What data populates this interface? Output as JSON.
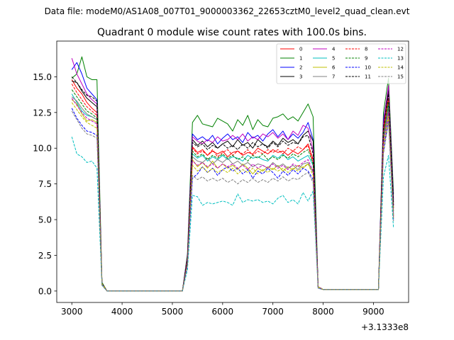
{
  "chart_data": {
    "type": "line",
    "suptitle": "Data file: modeM0/AS1A08_007T01_9000003362_22653cztM0_level2_quad_clean.evt",
    "title": "Quadrant 0 module wise count rates with 100.0s bins.",
    "xlabel": "",
    "ylabel": "",
    "x_offset_label": "+3.1333e8",
    "xlim": [
      2700,
      9700
    ],
    "ylim": [
      -0.8,
      17.5
    ],
    "xticks": [
      3000,
      4000,
      5000,
      6000,
      7000,
      8000,
      9000
    ],
    "xtick_labels": [
      "3000",
      "4000",
      "5000",
      "6000",
      "7000",
      "8000",
      "9000"
    ],
    "yticks": [
      0,
      2.5,
      5,
      7.5,
      10,
      12.5,
      15
    ],
    "ytick_labels": [
      "0.0",
      "2.5",
      "5.0",
      "7.5",
      "10.0",
      "12.5",
      "15.0"
    ],
    "grid": false,
    "legend_position": "top-right",
    "legend_columns": 4,
    "x": [
      3000,
      3100,
      3200,
      3300,
      3400,
      3500,
      3600,
      3700,
      3800,
      3900,
      4000,
      4100,
      4200,
      4300,
      4400,
      4500,
      4600,
      4700,
      4800,
      4900,
      5000,
      5100,
      5200,
      5300,
      5400,
      5500,
      5600,
      5700,
      5800,
      5900,
      6000,
      6100,
      6200,
      6300,
      6400,
      6500,
      6600,
      6700,
      6800,
      6900,
      7000,
      7100,
      7200,
      7300,
      7400,
      7500,
      7600,
      7700,
      7800,
      7900,
      8000,
      8100,
      8200,
      8300,
      8400,
      8500,
      8600,
      8700,
      8800,
      8900,
      9000,
      9100,
      9200,
      9300,
      9400
    ],
    "series": [
      {
        "name": "0",
        "color": "#ff0000",
        "dash": "solid",
        "values": [
          14.8,
          14.2,
          13.8,
          13.2,
          12.8,
          12.5,
          0.6,
          0,
          0,
          0,
          0,
          0,
          0,
          0,
          0,
          0,
          0,
          0,
          0,
          0,
          0,
          0,
          0,
          2.2,
          10.1,
          9.7,
          9.9,
          9.5,
          9.8,
          9.6,
          9.8,
          9.4,
          9.7,
          9.8,
          9.5,
          9.7,
          9.6,
          10.0,
          9.8,
          9.6,
          9.9,
          9.7,
          9.8,
          9.5,
          9.8,
          9.6,
          9.9,
          10.3,
          9.2,
          0.3,
          0.1,
          0.1,
          0.1,
          0.1,
          0.1,
          0.1,
          0.1,
          0.1,
          0.1,
          0.1,
          0.1,
          0.1,
          11.2,
          13.5,
          5.8
        ]
      },
      {
        "name": "1",
        "color": "#008000",
        "dash": "solid",
        "values": [
          14.9,
          15.2,
          16.4,
          15.0,
          14.8,
          14.8,
          0.6,
          0,
          0,
          0,
          0,
          0,
          0,
          0,
          0,
          0,
          0,
          0,
          0,
          0,
          0,
          0,
          0,
          2.6,
          11.8,
          12.3,
          11.7,
          11.6,
          11.5,
          12.1,
          11.9,
          11.7,
          11.2,
          12.0,
          11.6,
          12.3,
          11.3,
          12.0,
          11.6,
          11.5,
          12.1,
          12.2,
          12.4,
          12.0,
          12.2,
          11.9,
          12.5,
          13.1,
          12.2,
          0.3,
          0.1,
          0.1,
          0.1,
          0.1,
          0.1,
          0.1,
          0.1,
          0.1,
          0.1,
          0.1,
          0.1,
          0.1,
          12.5,
          14.9,
          6.8
        ]
      },
      {
        "name": "2",
        "color": "#0000ff",
        "dash": "solid",
        "values": [
          15.5,
          16.0,
          15.2,
          14.2,
          13.8,
          13.4,
          0.5,
          0,
          0,
          0,
          0,
          0,
          0,
          0,
          0,
          0,
          0,
          0,
          0,
          0,
          0,
          0,
          0,
          2.4,
          11.0,
          10.6,
          10.8,
          10.5,
          10.9,
          10.3,
          10.7,
          11.0,
          10.6,
          10.8,
          10.4,
          11.1,
          10.7,
          10.9,
          10.5,
          11.0,
          11.3,
          10.8,
          11.2,
          10.6,
          11.0,
          10.7,
          11.1,
          11.8,
          10.6,
          0.3,
          0.1,
          0.1,
          0.1,
          0.1,
          0.1,
          0.1,
          0.1,
          0.1,
          0.1,
          0.1,
          0.1,
          0.1,
          12.0,
          14.2,
          6.4
        ]
      },
      {
        "name": "3",
        "color": "#000000",
        "dash": "solid",
        "values": [
          14.7,
          14.6,
          14.0,
          13.5,
          13.2,
          12.9,
          0.5,
          0,
          0,
          0,
          0,
          0,
          0,
          0,
          0,
          0,
          0,
          0,
          0,
          0,
          0,
          0,
          0,
          2.3,
          10.6,
          10.2,
          10.5,
          10.1,
          10.4,
          10.0,
          10.3,
          10.5,
          10.1,
          10.6,
          10.2,
          10.4,
          10.0,
          10.6,
          10.3,
          10.1,
          10.5,
          10.2,
          10.7,
          10.4,
          10.6,
          10.3,
          10.9,
          11.2,
          10.5,
          0.3,
          0.1,
          0.1,
          0.1,
          0.1,
          0.1,
          0.1,
          0.1,
          0.1,
          0.1,
          0.1,
          0.1,
          0.1,
          11.6,
          14.0,
          6.2
        ]
      },
      {
        "name": "4",
        "color": "#bf00bf",
        "dash": "solid",
        "values": [
          16.3,
          15.2,
          14.5,
          13.8,
          13.4,
          13.1,
          0.5,
          0,
          0,
          0,
          0,
          0,
          0,
          0,
          0,
          0,
          0,
          0,
          0,
          0,
          0,
          0,
          0,
          2.4,
          10.8,
          10.5,
          10.3,
          10.6,
          10.4,
          10.8,
          10.5,
          10.6,
          10.9,
          10.6,
          11.0,
          10.5,
          10.8,
          10.6,
          11.0,
          10.8,
          11.1,
          10.7,
          11.0,
          10.6,
          11.2,
          10.9,
          11.6,
          11.4,
          9.8,
          0.3,
          0.1,
          0.1,
          0.1,
          0.1,
          0.1,
          0.1,
          0.1,
          0.1,
          0.1,
          0.1,
          0.1,
          0.1,
          11.8,
          14.4,
          6.0
        ]
      },
      {
        "name": "5",
        "color": "#00bfbf",
        "dash": "solid",
        "values": [
          13.8,
          13.2,
          12.6,
          12.3,
          12.2,
          12.0,
          0.5,
          0,
          0,
          0,
          0,
          0,
          0,
          0,
          0,
          0,
          0,
          0,
          0,
          0,
          0,
          0,
          0,
          2.1,
          9.6,
          9.3,
          9.5,
          9.1,
          9.4,
          9.2,
          9.5,
          9.2,
          9.4,
          9.3,
          9.1,
          9.5,
          9.3,
          9.4,
          9.2,
          9.1,
          9.5,
          9.3,
          9.6,
          9.2,
          9.4,
          9.1,
          9.3,
          9.5,
          8.8,
          0.3,
          0.1,
          0.1,
          0.1,
          0.1,
          0.1,
          0.1,
          0.1,
          0.1,
          0.1,
          0.1,
          0.1,
          0.1,
          10.8,
          13.0,
          5.4
        ]
      },
      {
        "name": "6",
        "color": "#bfbf00",
        "dash": "solid",
        "values": [
          13.4,
          13.1,
          12.4,
          11.9,
          12.0,
          11.8,
          0.5,
          0,
          0,
          0,
          0,
          0,
          0,
          0,
          0,
          0,
          0,
          0,
          0,
          0,
          0,
          0,
          0,
          2.0,
          9.2,
          8.7,
          9.0,
          8.6,
          9.1,
          8.6,
          8.9,
          8.6,
          8.8,
          8.5,
          8.9,
          8.6,
          8.2,
          8.6,
          8.4,
          8.7,
          8.5,
          8.8,
          8.4,
          8.7,
          8.5,
          8.8,
          8.6,
          8.9,
          8.4,
          0.3,
          0.1,
          0.1,
          0.1,
          0.1,
          0.1,
          0.1,
          0.1,
          0.1,
          0.1,
          0.1,
          0.1,
          0.1,
          10.4,
          12.6,
          5.2
        ]
      },
      {
        "name": "7",
        "color": "#808080",
        "dash": "solid",
        "values": [
          13.6,
          13.3,
          12.8,
          12.4,
          12.2,
          12.0,
          0.5,
          0,
          0,
          0,
          0,
          0,
          0,
          0,
          0,
          0,
          0,
          0,
          0,
          0,
          0,
          0,
          0,
          2.1,
          9.4,
          9.1,
          9.0,
          9.3,
          8.9,
          9.2,
          9.0,
          9.3,
          8.9,
          9.1,
          8.8,
          9.0,
          8.7,
          8.9,
          8.8,
          8.6,
          9.0,
          8.7,
          8.9,
          8.6,
          8.8,
          8.5,
          8.9,
          9.0,
          8.3,
          0.3,
          0.1,
          0.1,
          0.1,
          0.1,
          0.1,
          0.1,
          0.1,
          0.1,
          0.1,
          0.1,
          0.1,
          0.1,
          10.5,
          12.8,
          5.3
        ]
      },
      {
        "name": "8",
        "color": "#ff0000",
        "dash": "dashed",
        "values": [
          14.5,
          13.9,
          13.4,
          12.9,
          12.6,
          12.3,
          0.5,
          0,
          0,
          0,
          0,
          0,
          0,
          0,
          0,
          0,
          0,
          0,
          0,
          0,
          0,
          0,
          0,
          2.2,
          10.0,
          9.6,
          9.8,
          9.5,
          9.9,
          9.4,
          9.7,
          9.9,
          9.5,
          9.8,
          9.6,
          9.9,
          9.5,
          9.8,
          9.6,
          9.9,
          9.7,
          9.9,
          9.6,
          10.0,
          9.8,
          10.1,
          9.9,
          10.2,
          9.0,
          0.3,
          0.1,
          0.1,
          0.1,
          0.1,
          0.1,
          0.1,
          0.1,
          0.1,
          0.1,
          0.1,
          0.1,
          0.1,
          11.0,
          13.4,
          5.7
        ]
      },
      {
        "name": "9",
        "color": "#008000",
        "dash": "dashed",
        "values": [
          14.1,
          13.6,
          13.1,
          12.6,
          12.4,
          12.1,
          0.5,
          0,
          0,
          0,
          0,
          0,
          0,
          0,
          0,
          0,
          0,
          0,
          0,
          0,
          0,
          0,
          0,
          2.2,
          9.8,
          9.4,
          9.6,
          9.2,
          9.5,
          9.3,
          9.6,
          9.3,
          9.5,
          9.2,
          9.4,
          9.1,
          9.5,
          9.3,
          9.6,
          9.2,
          9.4,
          9.2,
          9.5,
          9.3,
          9.6,
          9.4,
          9.7,
          9.9,
          8.9,
          0.3,
          0.1,
          0.1,
          0.1,
          0.1,
          0.1,
          0.1,
          0.1,
          0.1,
          0.1,
          0.1,
          0.1,
          0.1,
          10.9,
          13.2,
          5.6
        ]
      },
      {
        "name": "10",
        "color": "#0000ff",
        "dash": "dashed",
        "values": [
          12.8,
          12.1,
          11.6,
          11.2,
          11.1,
          10.9,
          0.5,
          0,
          0,
          0,
          0,
          0,
          0,
          0,
          0,
          0,
          0,
          0,
          0,
          0,
          0,
          0,
          0,
          1.8,
          7.9,
          8.2,
          8.7,
          8.3,
          8.6,
          8.1,
          8.5,
          8.7,
          8.4,
          8.6,
          8.2,
          8.5,
          7.9,
          8.4,
          8.2,
          8.6,
          8.3,
          7.9,
          8.4,
          8.1,
          8.5,
          8.2,
          8.6,
          8.4,
          7.8,
          0.2,
          0.1,
          0.1,
          0.1,
          0.1,
          0.1,
          0.1,
          0.1,
          0.1,
          0.1,
          0.1,
          0.1,
          0.1,
          9.8,
          12.0,
          5.0
        ]
      },
      {
        "name": "11",
        "color": "#000000",
        "dash": "dashed",
        "values": [
          15.0,
          14.6,
          14.1,
          13.7,
          13.6,
          13.3,
          0.5,
          0,
          0,
          0,
          0,
          0,
          0,
          0,
          0,
          0,
          0,
          0,
          0,
          0,
          0,
          0,
          0,
          2.3,
          10.4,
          10.1,
          10.3,
          9.9,
          10.2,
          10.0,
          10.3,
          10.0,
          10.2,
          9.9,
          10.3,
          10.0,
          10.4,
          10.1,
          10.3,
          10.0,
          10.4,
          10.1,
          10.5,
          10.2,
          10.4,
          10.3,
          10.8,
          10.9,
          9.6,
          0.3,
          0.1,
          0.1,
          0.1,
          0.1,
          0.1,
          0.1,
          0.1,
          0.1,
          0.1,
          0.1,
          0.1,
          0.1,
          11.5,
          13.8,
          6.0
        ]
      },
      {
        "name": "12",
        "color": "#bf00bf",
        "dash": "dashed",
        "values": [
          13.5,
          13.0,
          12.5,
          12.1,
          11.9,
          11.7,
          0.5,
          0,
          0,
          0,
          0,
          0,
          0,
          0,
          0,
          0,
          0,
          0,
          0,
          0,
          0,
          0,
          0,
          2.0,
          9.1,
          8.8,
          9.0,
          8.7,
          8.9,
          8.6,
          8.9,
          8.7,
          8.9,
          8.6,
          8.8,
          8.5,
          8.9,
          8.6,
          8.8,
          8.6,
          8.9,
          8.6,
          8.8,
          8.5,
          8.9,
          8.7,
          9.0,
          9.2,
          8.4,
          0.3,
          0.1,
          0.1,
          0.1,
          0.1,
          0.1,
          0.1,
          0.1,
          0.1,
          0.1,
          0.1,
          0.1,
          0.1,
          10.3,
          12.5,
          5.2
        ]
      },
      {
        "name": "13",
        "color": "#00bfbf",
        "dash": "dashed",
        "values": [
          10.8,
          9.6,
          9.4,
          9.0,
          9.1,
          8.6,
          0.4,
          0,
          0,
          0,
          0,
          0,
          0,
          0,
          0,
          0,
          0,
          0,
          0,
          0,
          0,
          0,
          0,
          1.5,
          6.7,
          6.6,
          6.0,
          6.2,
          6.1,
          6.2,
          6.3,
          6.2,
          6.0,
          6.8,
          6.2,
          6.4,
          6.3,
          6.4,
          6.2,
          6.3,
          6.1,
          6.5,
          6.7,
          6.2,
          6.4,
          6.1,
          6.9,
          6.3,
          7.0,
          0.2,
          0.1,
          0.1,
          0.1,
          0.1,
          0.1,
          0.1,
          0.1,
          0.1,
          0.1,
          0.1,
          0.1,
          0.1,
          8.0,
          9.5,
          4.4
        ]
      },
      {
        "name": "14",
        "color": "#bfbf00",
        "dash": "dashed",
        "values": [
          13.2,
          12.7,
          12.2,
          11.8,
          11.6,
          11.4,
          0.5,
          0,
          0,
          0,
          0,
          0,
          0,
          0,
          0,
          0,
          0,
          0,
          0,
          0,
          0,
          0,
          0,
          1.9,
          8.8,
          8.4,
          8.7,
          8.3,
          8.6,
          8.3,
          8.5,
          8.3,
          8.6,
          8.2,
          8.5,
          8.3,
          8.6,
          8.2,
          8.5,
          8.3,
          8.6,
          8.4,
          8.6,
          8.3,
          8.6,
          8.4,
          8.7,
          8.9,
          8.1,
          0.3,
          0.1,
          0.1,
          0.1,
          0.1,
          0.1,
          0.1,
          0.1,
          0.1,
          0.1,
          0.1,
          0.1,
          0.1,
          10.1,
          12.2,
          5.1
        ]
      },
      {
        "name": "15",
        "color": "#808080",
        "dash": "dashed",
        "values": [
          12.6,
          12.0,
          11.4,
          11.0,
          10.9,
          10.7,
          0.4,
          0,
          0,
          0,
          0,
          0,
          0,
          0,
          0,
          0,
          0,
          0,
          0,
          0,
          0,
          0,
          0,
          1.8,
          8.1,
          7.8,
          8.0,
          7.7,
          7.9,
          7.7,
          7.9,
          7.6,
          7.8,
          7.5,
          7.8,
          7.6,
          7.9,
          7.6,
          7.8,
          7.6,
          7.9,
          7.7,
          8.0,
          7.7,
          7.9,
          7.8,
          8.1,
          8.3,
          7.6,
          0.2,
          0.1,
          0.1,
          0.1,
          0.1,
          0.1,
          0.1,
          0.1,
          0.1,
          0.1,
          0.1,
          0.1,
          0.1,
          9.6,
          11.8,
          4.9
        ]
      }
    ]
  }
}
